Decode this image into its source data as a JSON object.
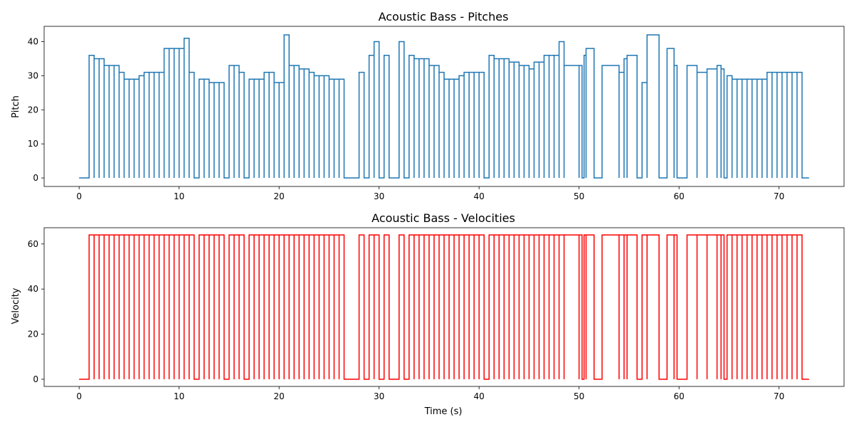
{
  "chart_data": [
    {
      "type": "line",
      "title": "Acoustic Bass - Pitches",
      "xlabel": "",
      "ylabel": "Pitch",
      "color": "#1f77b4",
      "xlim": [
        -3.5,
        76.5
      ],
      "ylim": [
        -2.5,
        44.5
      ],
      "xticks": [
        0,
        10,
        20,
        30,
        40,
        50,
        60,
        70
      ],
      "yticks": [
        0,
        10,
        20,
        30,
        40
      ],
      "grid": false,
      "step": true,
      "notes": [
        [
          1.0,
          1.5,
          36
        ],
        [
          1.5,
          2.0,
          35
        ],
        [
          2.0,
          2.5,
          35
        ],
        [
          2.5,
          3.0,
          33
        ],
        [
          3.0,
          3.5,
          33
        ],
        [
          3.5,
          4.0,
          33
        ],
        [
          4.0,
          4.5,
          31
        ],
        [
          4.5,
          5.0,
          29
        ],
        [
          5.0,
          5.5,
          29
        ],
        [
          5.5,
          6.0,
          29
        ],
        [
          6.0,
          6.5,
          30
        ],
        [
          6.5,
          7.0,
          31
        ],
        [
          7.0,
          7.5,
          31
        ],
        [
          7.5,
          8.0,
          31
        ],
        [
          8.0,
          8.5,
          31
        ],
        [
          8.5,
          9.0,
          38
        ],
        [
          9.0,
          9.5,
          38
        ],
        [
          9.5,
          10.0,
          38
        ],
        [
          10.0,
          10.5,
          38
        ],
        [
          10.5,
          11.0,
          41
        ],
        [
          11.0,
          11.5,
          31
        ],
        [
          12.0,
          12.5,
          29
        ],
        [
          12.5,
          13.0,
          29
        ],
        [
          13.0,
          13.5,
          28
        ],
        [
          13.5,
          14.0,
          28
        ],
        [
          14.0,
          14.5,
          28
        ],
        [
          15.0,
          15.5,
          33
        ],
        [
          15.5,
          16.0,
          33
        ],
        [
          16.0,
          16.5,
          31
        ],
        [
          17.0,
          17.5,
          29
        ],
        [
          17.5,
          18.0,
          29
        ],
        [
          18.0,
          18.5,
          29
        ],
        [
          18.5,
          19.0,
          31
        ],
        [
          19.0,
          19.5,
          31
        ],
        [
          19.5,
          20.0,
          28
        ],
        [
          20.0,
          20.5,
          28
        ],
        [
          20.5,
          21.0,
          42
        ],
        [
          21.0,
          21.5,
          33
        ],
        [
          21.5,
          22.0,
          33
        ],
        [
          22.0,
          22.5,
          32
        ],
        [
          22.5,
          23.0,
          32
        ],
        [
          23.0,
          23.5,
          31
        ],
        [
          23.5,
          24.0,
          30
        ],
        [
          24.0,
          24.5,
          30
        ],
        [
          24.5,
          25.0,
          30
        ],
        [
          25.0,
          25.5,
          29
        ],
        [
          25.5,
          26.0,
          29
        ],
        [
          26.0,
          26.5,
          29
        ],
        [
          28.0,
          28.5,
          31
        ],
        [
          29.0,
          29.5,
          36
        ],
        [
          29.5,
          30.0,
          40
        ],
        [
          30.5,
          31.0,
          36
        ],
        [
          32.0,
          32.5,
          40
        ],
        [
          33.0,
          33.5,
          36
        ],
        [
          33.5,
          34.0,
          35
        ],
        [
          34.0,
          34.5,
          35
        ],
        [
          34.5,
          35.0,
          35
        ],
        [
          35.0,
          35.5,
          33
        ],
        [
          35.5,
          36.0,
          33
        ],
        [
          36.0,
          36.5,
          31
        ],
        [
          36.5,
          37.0,
          29
        ],
        [
          37.0,
          37.5,
          29
        ],
        [
          37.5,
          38.0,
          29
        ],
        [
          38.0,
          38.5,
          30
        ],
        [
          38.5,
          39.0,
          31
        ],
        [
          39.0,
          39.5,
          31
        ],
        [
          39.5,
          40.0,
          31
        ],
        [
          40.0,
          40.5,
          31
        ],
        [
          41.0,
          41.5,
          36
        ],
        [
          41.5,
          42.0,
          35
        ],
        [
          42.0,
          42.5,
          35
        ],
        [
          42.5,
          43.0,
          35
        ],
        [
          43.0,
          43.5,
          34
        ],
        [
          43.5,
          44.0,
          34
        ],
        [
          44.0,
          44.5,
          33
        ],
        [
          44.5,
          45.0,
          33
        ],
        [
          45.0,
          45.5,
          32
        ],
        [
          45.5,
          46.0,
          34
        ],
        [
          46.0,
          46.5,
          34
        ],
        [
          46.5,
          47.0,
          36
        ],
        [
          47.0,
          47.5,
          36
        ],
        [
          47.5,
          48.0,
          36
        ],
        [
          48.0,
          48.5,
          40
        ],
        [
          48.5,
          50.0,
          33
        ],
        [
          50.0,
          50.3,
          33
        ],
        [
          50.5,
          50.7,
          36
        ],
        [
          50.7,
          51.5,
          38
        ],
        [
          52.3,
          54.0,
          33
        ],
        [
          54.0,
          54.5,
          31
        ],
        [
          54.5,
          54.8,
          35
        ],
        [
          54.8,
          55.8,
          36
        ],
        [
          56.3,
          56.8,
          28
        ],
        [
          56.8,
          58.0,
          42
        ],
        [
          58.8,
          59.5,
          38
        ],
        [
          59.5,
          59.8,
          33
        ],
        [
          60.8,
          61.8,
          33
        ],
        [
          61.8,
          62.8,
          31
        ],
        [
          62.8,
          63.8,
          32
        ],
        [
          63.8,
          64.2,
          33
        ],
        [
          64.2,
          64.5,
          32
        ],
        [
          64.8,
          65.3,
          30
        ],
        [
          65.3,
          65.8,
          29
        ],
        [
          65.8,
          66.3,
          29
        ],
        [
          66.3,
          66.8,
          29
        ],
        [
          66.8,
          67.3,
          29
        ],
        [
          67.3,
          67.8,
          29
        ],
        [
          67.8,
          68.3,
          29
        ],
        [
          68.3,
          68.8,
          29
        ],
        [
          68.8,
          69.3,
          31
        ],
        [
          69.3,
          69.8,
          31
        ],
        [
          69.8,
          70.3,
          31
        ],
        [
          70.3,
          70.8,
          31
        ],
        [
          70.8,
          71.3,
          31
        ],
        [
          71.3,
          71.8,
          31
        ],
        [
          71.8,
          72.3,
          31
        ],
        [
          72.3,
          72.8,
          0
        ]
      ],
      "end_time": 73.0
    },
    {
      "type": "line",
      "title": "Acoustic Bass - Velocities",
      "xlabel": "Time (s)",
      "ylabel": "Velocity",
      "color": "#ff0000",
      "xlim": [
        -3.5,
        76.5
      ],
      "ylim": [
        -3.2,
        67.2
      ],
      "xticks": [
        0,
        10,
        20,
        30,
        40,
        50,
        60,
        70
      ],
      "yticks": [
        0,
        20,
        40,
        60
      ],
      "grid": false,
      "step": true,
      "velocity": 64
    }
  ]
}
